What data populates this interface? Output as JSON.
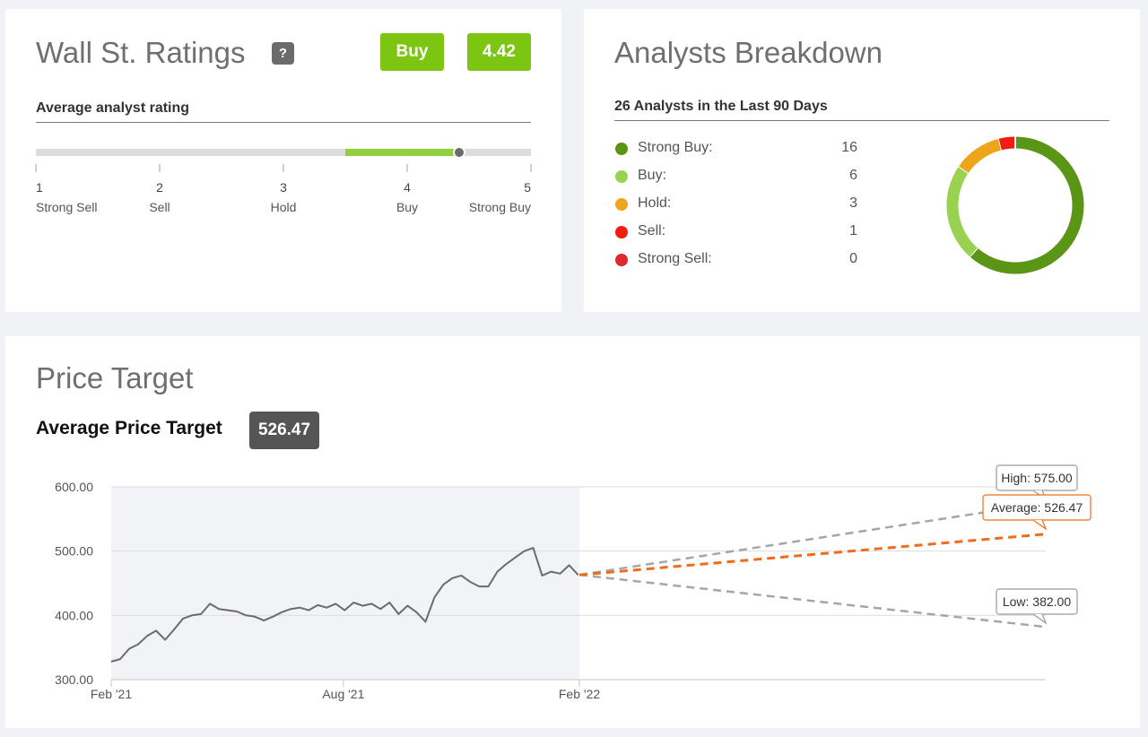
{
  "ratings": {
    "title": "Wall St. Ratings",
    "help": "?",
    "consensus_label": "Buy",
    "score": "4.42",
    "score_value": 4.42,
    "subtitle": "Average analyst rating",
    "scale": [
      {
        "num": "1",
        "label": "Strong Sell"
      },
      {
        "num": "2",
        "label": "Sell"
      },
      {
        "num": "3",
        "label": "Hold"
      },
      {
        "num": "4",
        "label": "Buy"
      },
      {
        "num": "5",
        "label": "Strong Buy"
      }
    ],
    "colors": {
      "accent": "#7cc510",
      "fill": "#92cf3e",
      "knob": "#6b6b6b"
    }
  },
  "breakdown": {
    "title": "Analysts Breakdown",
    "subtitle": "26 Analysts in the Last 90 Days",
    "items": [
      {
        "label": "Strong Buy:",
        "count": "16",
        "value": 16,
        "color": "#5a9516"
      },
      {
        "label": "Buy:",
        "count": "6",
        "value": 6,
        "color": "#98d250"
      },
      {
        "label": "Hold:",
        "count": "3",
        "value": 3,
        "color": "#eda51b"
      },
      {
        "label": "Sell:",
        "count": "1",
        "value": 1,
        "color": "#f21d10"
      },
      {
        "label": "Strong Sell:",
        "count": "0",
        "value": 0,
        "color": "#e0282e"
      }
    ]
  },
  "price": {
    "title": "Price Target",
    "avg_label": "Average Price Target",
    "avg_value": "526.47"
  },
  "chart_data": {
    "type": "line",
    "title": "",
    "xlabel": "",
    "ylabel": "",
    "x_ticks": [
      "Feb '21",
      "Aug '21",
      "Feb '22"
    ],
    "y_ticks": [
      "600.00",
      "500.00",
      "400.00",
      "300.00"
    ],
    "ylim": [
      300,
      600
    ],
    "grid": true,
    "history": {
      "x": [
        "2021-02-01",
        "2021-02-08",
        "2021-02-15",
        "2021-02-22",
        "2021-03-01",
        "2021-03-08",
        "2021-03-15",
        "2021-03-22",
        "2021-03-29",
        "2021-04-05",
        "2021-04-12",
        "2021-04-19",
        "2021-04-26",
        "2021-05-03",
        "2021-05-10",
        "2021-05-17",
        "2021-05-24",
        "2021-05-31",
        "2021-06-07",
        "2021-06-14",
        "2021-06-21",
        "2021-06-28",
        "2021-07-05",
        "2021-07-12",
        "2021-07-19",
        "2021-07-26",
        "2021-08-02",
        "2021-08-09",
        "2021-08-16",
        "2021-08-23",
        "2021-08-30",
        "2021-09-06",
        "2021-09-13",
        "2021-09-20",
        "2021-09-27",
        "2021-10-04",
        "2021-10-11",
        "2021-10-18",
        "2021-10-25",
        "2021-11-01",
        "2021-11-08",
        "2021-11-15",
        "2021-11-22",
        "2021-11-29",
        "2021-12-06",
        "2021-12-13",
        "2021-12-20",
        "2021-12-27",
        "2022-01-03",
        "2022-01-10",
        "2022-01-17",
        "2022-01-24",
        "2022-01-31"
      ],
      "values": [
        328,
        332,
        348,
        355,
        368,
        376,
        362,
        378,
        395,
        400,
        402,
        418,
        410,
        408,
        406,
        400,
        398,
        392,
        398,
        405,
        410,
        412,
        408,
        416,
        412,
        418,
        408,
        420,
        415,
        418,
        410,
        420,
        402,
        415,
        405,
        390,
        428,
        448,
        458,
        462,
        452,
        445,
        445,
        468,
        480,
        490,
        500,
        505,
        462,
        468,
        465,
        478,
        463
      ]
    },
    "targets": {
      "start_date": "2022-02-01",
      "start_value": 463,
      "end_date": "2023-02-01",
      "high": 575.0,
      "average": 526.47,
      "low": 382.0,
      "labels": {
        "high": "High: 575.00",
        "average": "Average: 526.47",
        "low": "Low: 382.00"
      },
      "colors": {
        "average": "#ef6c1a",
        "bounds": "#a6a6a6",
        "line": "#6b6b6b"
      }
    }
  }
}
